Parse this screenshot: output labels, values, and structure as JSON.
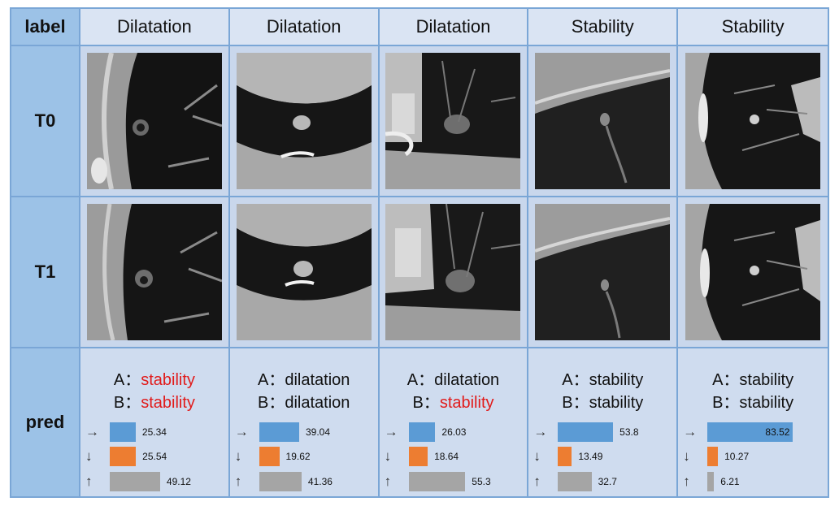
{
  "header": {
    "corner": "label",
    "columns": [
      "Dilatation",
      "Dilatation",
      "Dilatation",
      "Stability",
      "Stability"
    ]
  },
  "rows": {
    "t0": "T0",
    "t1": "T1",
    "pred": "pred"
  },
  "arrows": {
    "right": "→",
    "down": "↓",
    "up": "↑"
  },
  "preds": [
    {
      "a_prefix": "A：",
      "a_value": "stability",
      "a_color": "#e11b1b",
      "b_prefix": "B：",
      "b_value": "stability",
      "b_color": "#e11b1b",
      "bars": [
        {
          "value": "25.34"
        },
        {
          "value": "25.54"
        },
        {
          "value": "49.12"
        }
      ]
    },
    {
      "a_prefix": "A：",
      "a_value": "dilatation",
      "a_color": "#111111",
      "b_prefix": "B：",
      "b_value": "dilatation",
      "b_color": "#111111",
      "bars": [
        {
          "value": "39.04"
        },
        {
          "value": "19.62"
        },
        {
          "value": "41.36"
        }
      ]
    },
    {
      "a_prefix": "A：",
      "a_value": "dilatation",
      "a_color": "#111111",
      "b_prefix": "B：",
      "b_value": "stability",
      "b_color": "#e11b1b",
      "bars": [
        {
          "value": "26.03"
        },
        {
          "value": "18.64"
        },
        {
          "value": "55.3"
        }
      ]
    },
    {
      "a_prefix": "A：",
      "a_value": "stability",
      "a_color": "#111111",
      "b_prefix": "B：",
      "b_value": "stability",
      "b_color": "#111111",
      "bars": [
        {
          "value": "53.8"
        },
        {
          "value": "13.49"
        },
        {
          "value": "32.7"
        }
      ]
    },
    {
      "a_prefix": "A：",
      "a_value": "stability",
      "a_color": "#111111",
      "b_prefix": "B：",
      "b_value": "stability",
      "b_color": "#111111",
      "bars": [
        {
          "value": "83.52"
        },
        {
          "value": "10.27"
        },
        {
          "value": "6.21"
        }
      ]
    }
  ],
  "colors": {
    "blue": "#5b9bd5",
    "orange": "#ed7d31",
    "gray": "#a5a5a5",
    "border": "#7aa6d6"
  }
}
